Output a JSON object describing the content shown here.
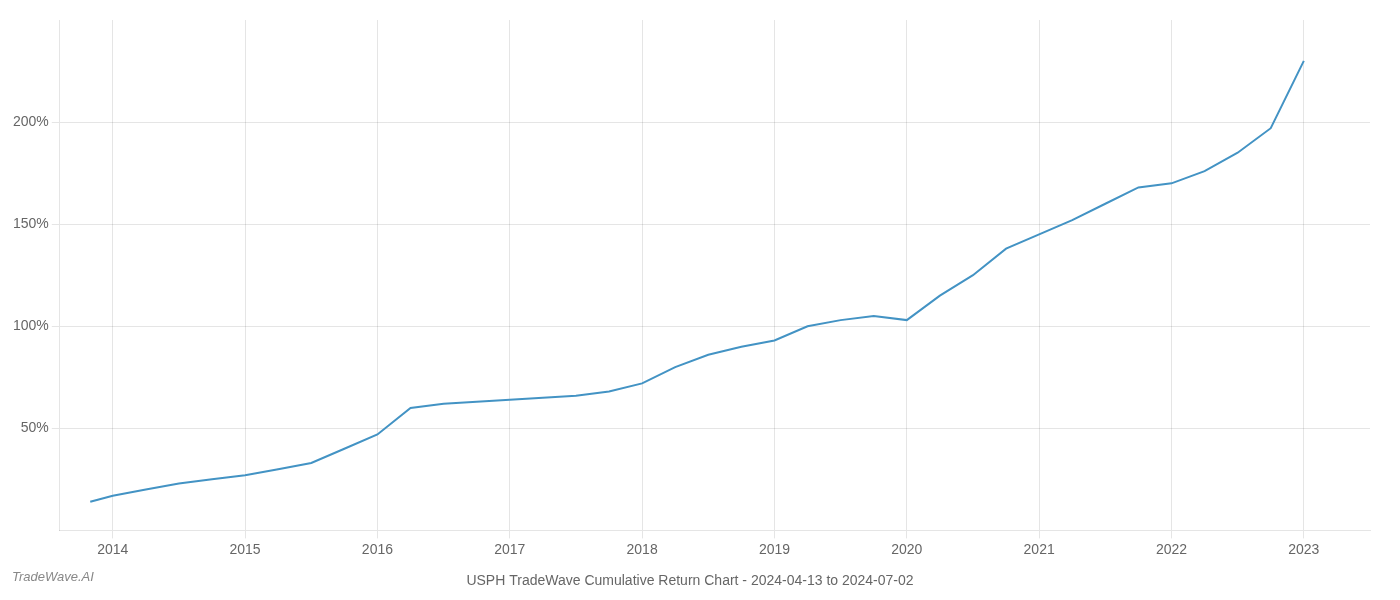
{
  "chart_data": {
    "type": "line",
    "title": "USPH TradeWave Cumulative Return Chart - 2024-04-13 to 2024-07-02",
    "annotations": [
      "TradeWave.AI"
    ],
    "x": [
      2013.83,
      2014.0,
      2014.25,
      2014.5,
      2014.75,
      2015.0,
      2015.25,
      2015.5,
      2015.75,
      2016.0,
      2016.25,
      2016.5,
      2016.75,
      2017.0,
      2017.25,
      2017.5,
      2017.75,
      2018.0,
      2018.25,
      2018.5,
      2018.75,
      2019.0,
      2019.25,
      2019.5,
      2019.75,
      2020.0,
      2020.25,
      2020.5,
      2020.75,
      2021.0,
      2021.25,
      2021.5,
      2021.75,
      2022.0,
      2022.25,
      2022.5,
      2022.75,
      2023.0
    ],
    "values": [
      14,
      17,
      20,
      23,
      25,
      27,
      30,
      33,
      40,
      47,
      60,
      62,
      63,
      64,
      65,
      66,
      68,
      72,
      80,
      86,
      90,
      93,
      100,
      103,
      105,
      103,
      115,
      125,
      138,
      145,
      152,
      160,
      168,
      170,
      176,
      185,
      197,
      230
    ],
    "color": "#4393c4",
    "xlim": [
      2013.6,
      2023.5
    ],
    "xticks": [
      2014,
      2015,
      2016,
      2017,
      2018,
      2019,
      2020,
      2021,
      2022,
      2023
    ],
    "ylim": [
      0,
      250
    ],
    "yticks": [
      {
        "value": 50,
        "label": "50%"
      },
      {
        "value": 100,
        "label": "100%"
      },
      {
        "value": 150,
        "label": "150%"
      },
      {
        "value": 200,
        "label": "200%"
      }
    ],
    "grid": true
  }
}
